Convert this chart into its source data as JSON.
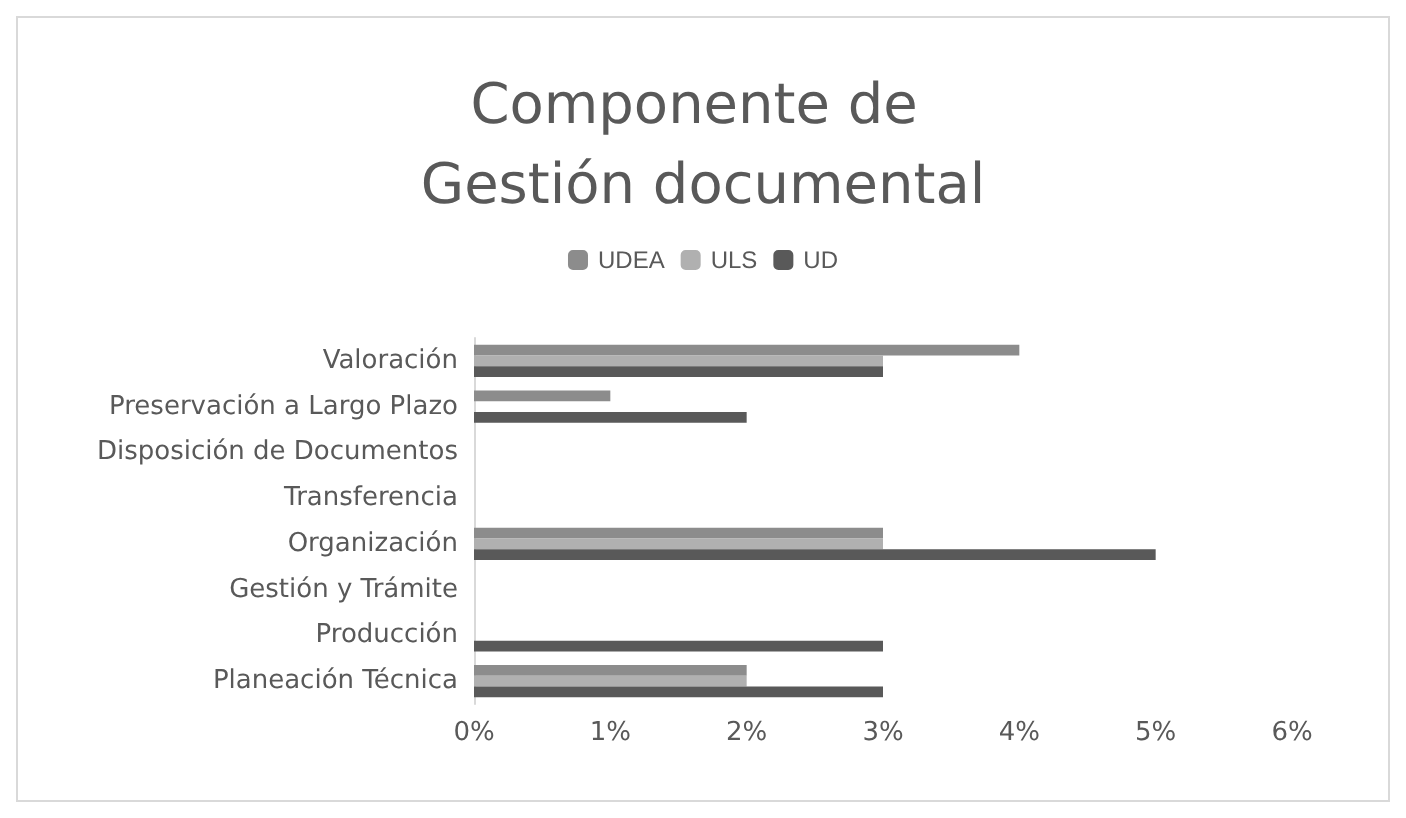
{
  "chart_data": {
    "type": "bar",
    "orientation": "horizontal",
    "title": "Componente de Gestión documental",
    "categories": [
      "Valoración",
      "Preservación a Largo Plazo",
      "Disposición de Documentos",
      "Transferencia",
      "Organización",
      "Gestión y Trámite",
      "Producción",
      "Planeación Técnica"
    ],
    "series": [
      {
        "name": "UDEA",
        "color": "#8c8c8c",
        "values": [
          4,
          1,
          0,
          0,
          3,
          0,
          0,
          2
        ]
      },
      {
        "name": "ULS",
        "color": "#b0b0b0",
        "values": [
          3,
          0,
          0,
          0,
          3,
          0,
          0,
          2
        ]
      },
      {
        "name": "UD",
        "color": "#595959",
        "values": [
          3,
          2,
          0,
          0,
          5,
          0,
          3,
          3
        ]
      }
    ],
    "xlim": [
      0,
      6
    ],
    "xticks": [
      {
        "value": 0,
        "label": "0%"
      },
      {
        "value": 1,
        "label": "1%"
      },
      {
        "value": 2,
        "label": "2%"
      },
      {
        "value": 3,
        "label": "3%"
      },
      {
        "value": 4,
        "label": "4%"
      },
      {
        "value": 5,
        "label": "5%"
      },
      {
        "value": 6,
        "label": "6%"
      }
    ],
    "grid": false,
    "legend": "top"
  }
}
